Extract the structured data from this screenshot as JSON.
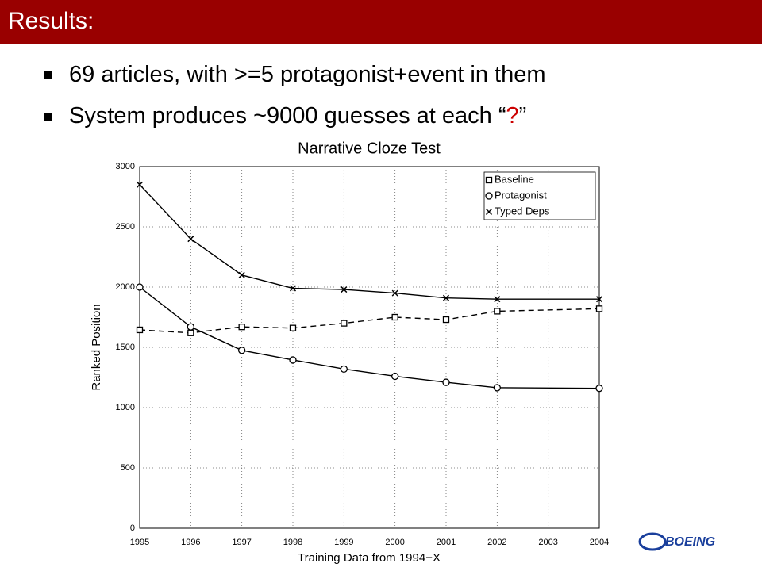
{
  "header": {
    "title": "Results:"
  },
  "bullets": [
    [
      "69 articles, with >=5 protagonist+event in them"
    ],
    [
      "System produces ~9000 guesses at each “",
      "?",
      "”"
    ]
  ],
  "logo": "BOEING",
  "chart_data": {
    "type": "line",
    "title": "Narrative Cloze Test",
    "x_label": "Training Data from 1994−X",
    "y_label": "Ranked Position",
    "xlim": [
      1995,
      2004
    ],
    "xticks": [
      1995,
      1996,
      1997,
      1998,
      1999,
      2000,
      2001,
      2002,
      2003,
      2004
    ],
    "ylim": [
      0,
      3000
    ],
    "yticks": [
      0,
      500,
      1000,
      1500,
      2000,
      2500,
      3000
    ],
    "grid": true,
    "legend": "upper right",
    "series": [
      {
        "name": "Baseline",
        "color": "#000000",
        "marker": "square",
        "dashed": true,
        "x": [
          1995,
          1996,
          1997,
          1998,
          1999,
          2000,
          2001,
          2002,
          2004
        ],
        "values": [
          1645,
          1620,
          1670,
          1660,
          1700,
          1750,
          1730,
          1800,
          1820
        ]
      },
      {
        "name": "Protagonist",
        "color": "#000000",
        "marker": "circle",
        "dashed": false,
        "x": [
          1995,
          1996,
          1997,
          1998,
          1999,
          2000,
          2001,
          2002,
          2004
        ],
        "values": [
          2000,
          1670,
          1475,
          1395,
          1320,
          1260,
          1210,
          1165,
          1160
        ]
      },
      {
        "name": "Typed Deps",
        "color": "#000000",
        "marker": "x",
        "dashed": false,
        "x": [
          1995,
          1996,
          1997,
          1998,
          1999,
          2000,
          2001,
          2002,
          2004
        ],
        "values": [
          2850,
          2400,
          2100,
          1990,
          1980,
          1950,
          1910,
          1900,
          1900
        ]
      }
    ]
  }
}
